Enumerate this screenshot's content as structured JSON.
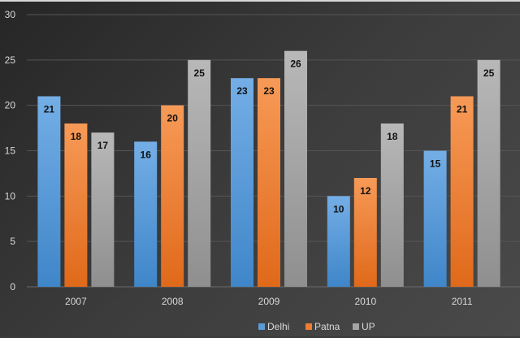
{
  "chart_data": {
    "type": "bar",
    "title": "",
    "xlabel": "",
    "ylabel": "",
    "categories": [
      "2007",
      "2008",
      "2009",
      "2010",
      "2011"
    ],
    "series": [
      {
        "name": "Delhi",
        "color": "#5b9bd5",
        "values": [
          21,
          16,
          23,
          10,
          15
        ]
      },
      {
        "name": "Patna",
        "color": "#ed7d31",
        "values": [
          18,
          20,
          23,
          12,
          21
        ]
      },
      {
        "name": "UP",
        "color": "#a5a5a5",
        "values": [
          17,
          25,
          26,
          18,
          25
        ]
      }
    ],
    "ylim": [
      0,
      30
    ],
    "yticks": [
      0,
      5,
      10,
      15,
      20,
      25,
      30
    ],
    "grid": true,
    "legend": "bottom-center",
    "data_labels": true
  }
}
